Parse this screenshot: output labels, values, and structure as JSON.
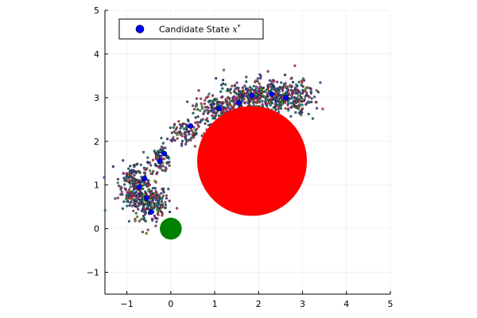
{
  "chart_data": {
    "type": "scatter",
    "title": "",
    "xlabel": "",
    "ylabel": "",
    "xlim": [
      -1.5,
      5
    ],
    "ylim": [
      -1.5,
      5
    ],
    "xticks": [
      -1,
      0,
      1,
      2,
      3,
      4,
      5
    ],
    "yticks": [
      -1,
      0,
      1,
      2,
      3,
      4,
      5
    ],
    "grid": true,
    "legend_position": "top-left",
    "legend": {
      "label": "Candidate State",
      "math": "x",
      "sup": "*",
      "color": "#0000ff"
    },
    "obstacles": [
      {
        "name": "obstacle",
        "x": 1.85,
        "y": 1.55,
        "r": 1.25,
        "color": "#ff0000"
      },
      {
        "name": "start",
        "x": 0.0,
        "y": 0.0,
        "r": 0.25,
        "color": "#008000"
      }
    ],
    "candidate_points": [
      {
        "x": -0.45,
        "y": 0.38
      },
      {
        "x": -0.55,
        "y": 0.7
      },
      {
        "x": -0.72,
        "y": 0.95
      },
      {
        "x": -0.6,
        "y": 1.15
      },
      {
        "x": -0.25,
        "y": 1.55
      },
      {
        "x": -0.15,
        "y": 1.72
      },
      {
        "x": 0.45,
        "y": 2.35
      },
      {
        "x": 1.1,
        "y": 2.75
      },
      {
        "x": 1.55,
        "y": 2.88
      },
      {
        "x": 1.85,
        "y": 3.05
      },
      {
        "x": 2.3,
        "y": 3.08
      },
      {
        "x": 2.62,
        "y": 3.0
      }
    ],
    "sample_clusters": [
      {
        "x": -0.75,
        "y": 0.85,
        "sx": 0.22,
        "sy": 0.28,
        "n": 220
      },
      {
        "x": -0.45,
        "y": 0.55,
        "sx": 0.18,
        "sy": 0.22,
        "n": 140
      },
      {
        "x": -0.25,
        "y": 1.6,
        "sx": 0.13,
        "sy": 0.15,
        "n": 90
      },
      {
        "x": 0.3,
        "y": 2.2,
        "sx": 0.22,
        "sy": 0.15,
        "n": 90
      },
      {
        "x": 1.05,
        "y": 2.7,
        "sx": 0.3,
        "sy": 0.17,
        "n": 170
      },
      {
        "x": 1.7,
        "y": 3.0,
        "sx": 0.32,
        "sy": 0.18,
        "n": 200
      },
      {
        "x": 2.4,
        "y": 3.05,
        "sx": 0.32,
        "sy": 0.2,
        "n": 230
      },
      {
        "x": 2.9,
        "y": 2.95,
        "sx": 0.2,
        "sy": 0.2,
        "n": 110
      },
      {
        "x": -0.9,
        "y": 1.2,
        "sx": 0.1,
        "sy": 0.15,
        "n": 50
      }
    ],
    "sample_colors": [
      "#1f9e89",
      "#3e4a89",
      "#e34a6f",
      "#6cb33f",
      "#2a788e",
      "#8e3fb5",
      "#d9534f",
      "#26828e",
      "#4b6cc1",
      "#b5369a"
    ]
  }
}
